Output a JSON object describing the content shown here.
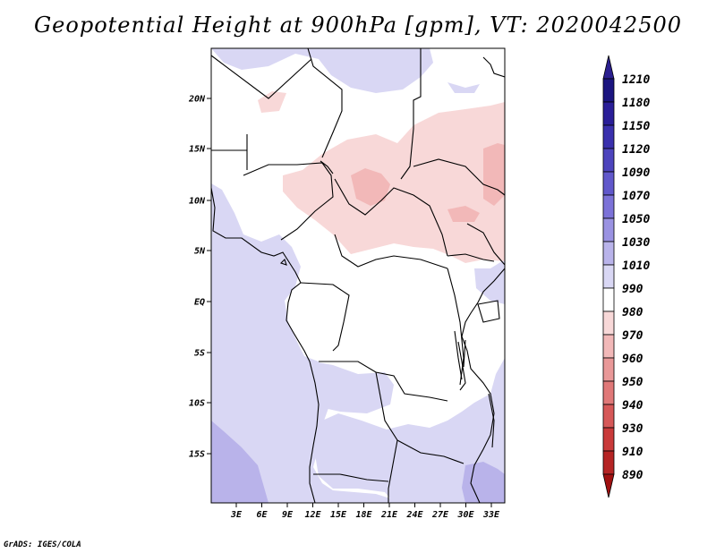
{
  "title": "Geopotential Height at 900hPa [gpm], VT: 2020042500",
  "credit": "GrADS: IGES/COLA",
  "map": {
    "field": "geopotential_height_900hPa",
    "units": "gpm",
    "lon_labels": [
      "3E",
      "6E",
      "9E",
      "12E",
      "15E",
      "18E",
      "21E",
      "24E",
      "27E",
      "30E",
      "33E"
    ],
    "lat_labels": [
      "20N",
      "15N",
      "10N",
      "5N",
      "EQ",
      "5S",
      "10S",
      "15S"
    ]
  },
  "colorbar": {
    "levels": [
      "1210",
      "1180",
      "1150",
      "1120",
      "1090",
      "1070",
      "1050",
      "1030",
      "1010",
      "990",
      "980",
      "970",
      "960",
      "950",
      "940",
      "930",
      "910",
      "890"
    ],
    "colors": [
      "#1b1580",
      "#2a1e98",
      "#3a30ad",
      "#4d44bd",
      "#6158cb",
      "#7c72d8",
      "#9a92e2",
      "#b9b3ea",
      "#d9d7f4",
      "#ffffff",
      "#f8d8d8",
      "#f2b8b8",
      "#e99898",
      "#e07878",
      "#d65858",
      "#c93a3a",
      "#b52424",
      "#9e1212"
    ],
    "top_arrow_color": "#2b1f8f",
    "bottom_arrow_color": "#a01010"
  }
}
